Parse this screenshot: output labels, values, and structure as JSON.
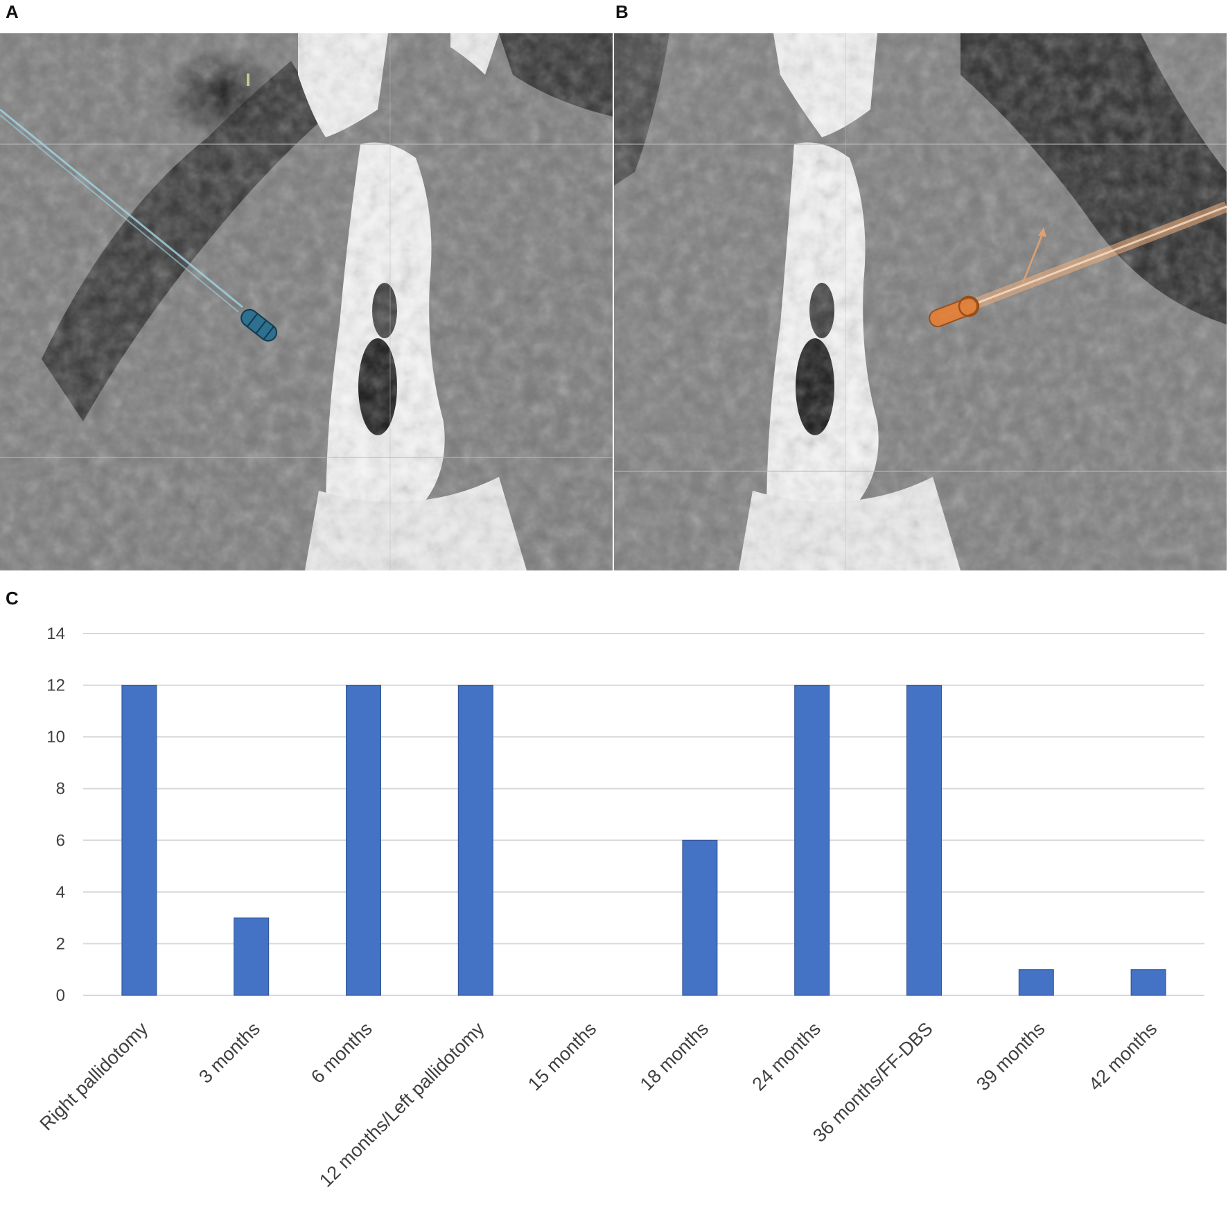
{
  "panels": {
    "a_label": "A",
    "b_label": "B",
    "c_label": "C"
  },
  "images": {
    "a_icon": "ct-slice-with-blue-electrode-trajectory",
    "b_icon": "ct-slice-with-orange-electrode-trajectory"
  },
  "colors": {
    "bar": "#4472C4",
    "electrode_a": "#2F6F8F",
    "electrode_b": "#E0803A",
    "grid": "#D9D9D9"
  },
  "chart_data": {
    "type": "bar",
    "categories": [
      "Right pallidotomy",
      "3 months",
      "6 months",
      "12 months/Left pallidotomy",
      "15 months",
      "18 months",
      "24 months",
      "36 months/FF-DBS",
      "39 months",
      "42 months"
    ],
    "values": [
      12,
      3,
      12,
      12,
      0,
      6,
      12,
      12,
      1,
      1
    ],
    "yticks": [
      "0",
      "2",
      "4",
      "6",
      "8",
      "10",
      "12",
      "14"
    ],
    "ylim": [
      0,
      14
    ],
    "grid": true,
    "legend": "none"
  }
}
